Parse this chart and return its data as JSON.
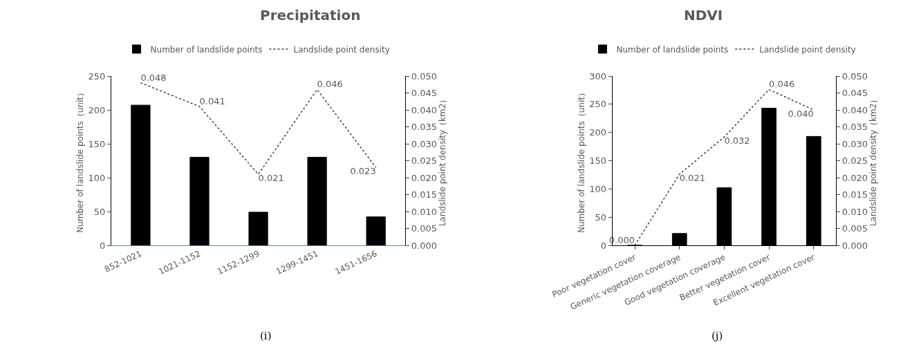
{
  "chart_data": [
    {
      "type": "bar",
      "title": "Precipitation",
      "ylabel": "Number of landslide points（unit）",
      "y2label": "Landslide point density（km2）",
      "categories": [
        "852-1021",
        "1021-1152",
        "1152-1299",
        "1299-1451",
        "1451-1656"
      ],
      "series": [
        {
          "name": "Number of landslide points",
          "color": "#000000",
          "values": [
            207,
            130,
            49,
            130,
            42
          ]
        },
        {
          "name": "Landslide point density",
          "type": "line",
          "axis": "y2",
          "color": "#404040",
          "line_style": "dotted",
          "values": [
            0.048,
            0.041,
            0.021,
            0.046,
            0.023
          ],
          "value_labels": [
            "0.048",
            "0.041",
            "0.021",
            "0.046",
            "0.023"
          ]
        }
      ],
      "ylim": [
        0,
        250
      ],
      "yticks": [
        0,
        50,
        100,
        150,
        200,
        250
      ],
      "y2lim": [
        0,
        0.05
      ],
      "y2ticks": [
        {
          "value": 0,
          "label": "0.000"
        },
        {
          "value": 0.005,
          "label": "0.005"
        },
        {
          "value": 0.01,
          "label": "0.010"
        },
        {
          "value": 0.015,
          "label": "0.015"
        },
        {
          "value": 0.02,
          "label": "0.020"
        },
        {
          "value": 0.025,
          "label": "0.025"
        },
        {
          "value": 0.03,
          "label": "0.030"
        },
        {
          "value": 0.035,
          "label": "0.035"
        },
        {
          "value": 0.04,
          "label": "0.040"
        },
        {
          "value": 0.045,
          "label": "0.045"
        },
        {
          "value": 0.05,
          "label": "0.050"
        }
      ],
      "legend": "top",
      "marker": "none",
      "annotations": [
        "(i)"
      ]
    },
    {
      "type": "bar",
      "title": "NDVI",
      "ylabel": "Number of landslide points（unit）",
      "y2label": "Landslide point density（km2）",
      "categories": [
        "Poor vegetation cover",
        "Generic vegetation coverage",
        "Good vegetation coverage",
        "Better vegetation cover",
        "Excellent vegetation cover"
      ],
      "series": [
        {
          "name": "Number of landslide points",
          "color": "#000000",
          "values": [
            0,
            21,
            102,
            243,
            193
          ]
        },
        {
          "name": "Landslide point density",
          "type": "line",
          "axis": "y2",
          "color": "#404040",
          "line_style": "dotted",
          "values": [
            0.0,
            0.021,
            0.032,
            0.046,
            0.04
          ],
          "value_labels": [
            "0.000",
            "0.021",
            "0.032",
            "0.046",
            "0.040"
          ]
        }
      ],
      "ylim": [
        0,
        300
      ],
      "yticks": [
        0,
        50,
        100,
        150,
        200,
        250,
        300
      ],
      "y2lim": [
        0,
        0.05
      ],
      "y2ticks": [
        {
          "value": 0,
          "label": "0.000"
        },
        {
          "value": 0.005,
          "label": "0.005"
        },
        {
          "value": 0.01,
          "label": "0.010"
        },
        {
          "value": 0.015,
          "label": "0.015"
        },
        {
          "value": 0.02,
          "label": "0.020"
        },
        {
          "value": 0.025,
          "label": "0.025"
        },
        {
          "value": 0.03,
          "label": "0.030"
        },
        {
          "value": 0.035,
          "label": "0.035"
        },
        {
          "value": 0.04,
          "label": "0.040"
        },
        {
          "value": 0.045,
          "label": "0.045"
        },
        {
          "value": 0.05,
          "label": "0.050"
        }
      ],
      "legend": "top",
      "marker": "none",
      "annotations": [
        "(j)"
      ]
    }
  ]
}
